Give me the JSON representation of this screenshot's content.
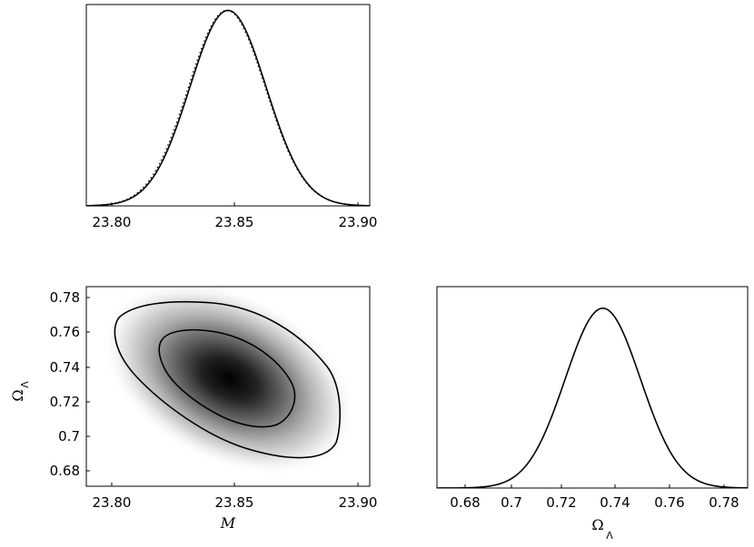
{
  "chart_data": [
    {
      "panel": "top-left",
      "type": "line",
      "xlabel": "",
      "ylabel": "",
      "xlim": [
        23.79,
        23.905
      ],
      "ylim": [
        0,
        1.03
      ],
      "xticks": [
        "23.80",
        "23.85",
        "23.90"
      ],
      "xtick_values": [
        23.8,
        23.85,
        23.9
      ],
      "yticks": [],
      "series": [
        {
          "style": "solid",
          "distribution": "gaussian",
          "mean": 23.8475,
          "sigma": 0.0155,
          "peak": 1.0
        },
        {
          "style": "dotted",
          "distribution": "gaussian",
          "mean": 23.847,
          "sigma": 0.0156,
          "peak": 1.0
        }
      ]
    },
    {
      "panel": "bottom-left",
      "type": "heatmap",
      "xlabel": "M",
      "ylabel": "Ω_Λ",
      "xlim": [
        23.79,
        23.905
      ],
      "ylim": [
        0.67,
        0.785
      ],
      "xticks": [
        "23.80",
        "23.85",
        "23.90"
      ],
      "xtick_values": [
        23.8,
        23.85,
        23.9
      ],
      "yticks": [
        "0.68",
        "0.7",
        "0.72",
        "0.74",
        "0.76",
        "0.78"
      ],
      "ytick_values": [
        0.68,
        0.7,
        0.72,
        0.74,
        0.76,
        0.78
      ],
      "density": {
        "mean_x": 23.848,
        "mean_y": 0.733,
        "sigma_x": 0.0155,
        "sigma_y": 0.0143,
        "rho": -0.6,
        "colormap": "white-to-black"
      },
      "contours": [
        {
          "level": "68%",
          "center": [
            23.8495,
            0.7345
          ],
          "semi_major_rot_deg": -28
        },
        {
          "level": "95%",
          "center": [
            23.8485,
            0.731
          ],
          "semi_major_rot_deg": -28
        }
      ]
    },
    {
      "panel": "bottom-right",
      "type": "line",
      "xlabel": "Ω_Λ",
      "ylabel": "",
      "xlim": [
        0.67,
        0.788
      ],
      "ylim": [
        0,
        1.12
      ],
      "xticks": [
        "0.68",
        "0.7",
        "0.72",
        "0.74",
        "0.76",
        "0.78"
      ],
      "xtick_values": [
        0.68,
        0.7,
        0.72,
        0.74,
        0.76,
        0.78
      ],
      "yticks": [],
      "series": [
        {
          "style": "solid",
          "distribution": "gaussian",
          "mean": 0.733,
          "sigma": 0.0143,
          "peak": 1.0
        }
      ]
    }
  ],
  "labels": {
    "top_xticks": [
      "23.80",
      "23.85",
      "23.90"
    ],
    "bl_xticks": [
      "23.80",
      "23.85",
      "23.90"
    ],
    "bl_yticks": [
      "0.68",
      "0.7",
      "0.72",
      "0.74",
      "0.76",
      "0.78"
    ],
    "br_xticks": [
      "0.68",
      "0.7",
      "0.72",
      "0.74",
      "0.76",
      "0.78"
    ],
    "bl_xlabel": "M",
    "bl_ylabel_main": "Ω",
    "bl_ylabel_sub": "Λ",
    "br_xlabel_main": "Ω",
    "br_xlabel_sub": "Λ"
  },
  "colors": {
    "line": "#000000",
    "background": "#ffffff",
    "density_dark": "#000000"
  }
}
